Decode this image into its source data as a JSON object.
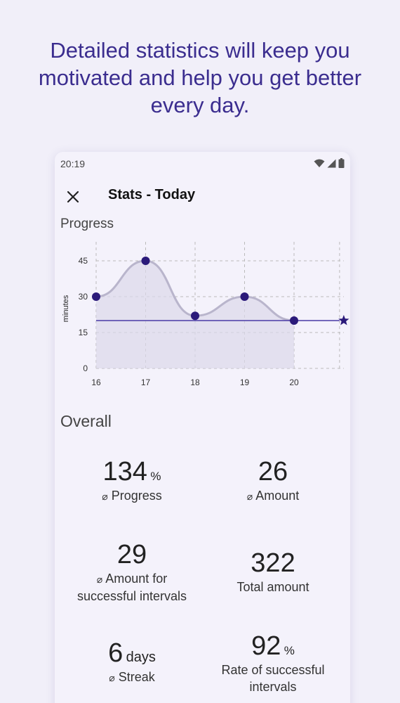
{
  "headline": "Detailed statistics will keep you motivated and help you get better every day.",
  "status_bar": {
    "time": "20:19"
  },
  "appbar": {
    "title": "Stats - Today"
  },
  "progress_section": {
    "label": "Progress"
  },
  "overall_section": {
    "label": "Overall"
  },
  "chart_data": {
    "type": "area",
    "ylabel": "minutes",
    "x": [
      16,
      17,
      18,
      19,
      20
    ],
    "y": [
      30,
      45,
      22,
      30,
      20
    ],
    "ylim": [
      0,
      50
    ],
    "yticks": [
      0,
      15,
      30,
      45
    ],
    "goal": 20,
    "grid": true,
    "colors": {
      "point": "#2b1a7a",
      "line": "#b9b5cc",
      "fill": "#dcd9ea",
      "goal": "#4a3aa6",
      "grid": "#bbbbbb"
    }
  },
  "stats": {
    "avg_symbol": "⌀",
    "progress": {
      "value": "134",
      "unit": "%",
      "label": "Progress"
    },
    "amount": {
      "value": "26",
      "label": "Amount"
    },
    "amount_successful": {
      "value": "29",
      "label_line1": "Amount for",
      "label_line2": "successful intervals"
    },
    "total_amount": {
      "value": "322",
      "label": "Total amount"
    },
    "streak": {
      "value": "6",
      "unit": "days",
      "label": "Streak"
    },
    "success_rate": {
      "value": "92",
      "unit": "%",
      "label_line1": "Rate of successful",
      "label_line2": "intervals"
    }
  }
}
